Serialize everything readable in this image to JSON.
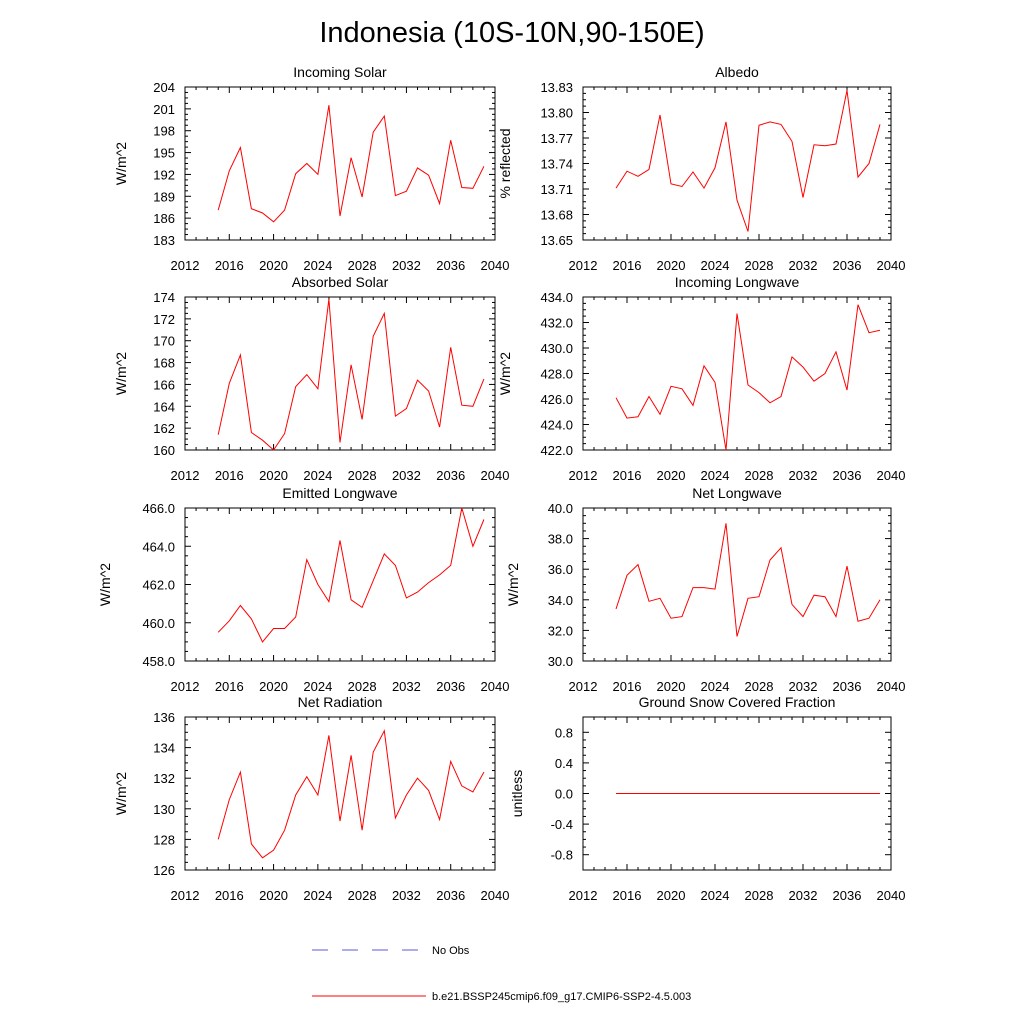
{
  "title": "Indonesia (10S-10N,90-150E)",
  "colors": {
    "series": "#ff0000",
    "obs": "#5a5adc",
    "axis": "#000000"
  },
  "legend": {
    "obs_label": "No Obs",
    "model_label": "b.e21.BSSP245cmip6.f09_g17.CMIP6-SSP2-4.5.003"
  },
  "chart_data": [
    {
      "type": "line",
      "title": "Incoming Solar",
      "ylabel": "W/m^2",
      "xlim": [
        2012,
        2040
      ],
      "xticks": [
        2012,
        2016,
        2020,
        2024,
        2028,
        2032,
        2036,
        2040
      ],
      "ylim": [
        183,
        204
      ],
      "yticks": [
        "183",
        "186",
        "189",
        "192",
        "195",
        "198",
        "201",
        "204"
      ],
      "x": [
        2015,
        2016,
        2017,
        2018,
        2019,
        2020,
        2021,
        2022,
        2023,
        2024,
        2025,
        2026,
        2027,
        2028,
        2029,
        2030,
        2031,
        2032,
        2033,
        2034,
        2035,
        2036,
        2037,
        2038,
        2039
      ],
      "values": [
        187.1,
        192.5,
        195.7,
        187.3,
        186.7,
        185.5,
        187.1,
        192.1,
        193.5,
        192.0,
        201.5,
        186.3,
        194.3,
        188.9,
        197.8,
        200.0,
        189.1,
        189.7,
        192.9,
        191.9,
        188.0,
        196.7,
        190.2,
        190.1,
        193.1
      ]
    },
    {
      "type": "line",
      "title": "Albedo",
      "ylabel": "% reflected",
      "xlim": [
        2012,
        2040
      ],
      "xticks": [
        2012,
        2016,
        2020,
        2024,
        2028,
        2032,
        2036,
        2040
      ],
      "ylim": [
        13.65,
        13.83
      ],
      "yticks": [
        "13.65",
        "13.68",
        "13.71",
        "13.74",
        "13.77",
        "13.80",
        "13.83"
      ],
      "x": [
        2015,
        2016,
        2017,
        2018,
        2019,
        2020,
        2021,
        2022,
        2023,
        2024,
        2025,
        2026,
        2027,
        2028,
        2029,
        2030,
        2031,
        2032,
        2033,
        2034,
        2035,
        2036,
        2037,
        2038,
        2039
      ],
      "values": [
        13.711,
        13.731,
        13.725,
        13.733,
        13.797,
        13.716,
        13.713,
        13.73,
        13.711,
        13.735,
        13.789,
        13.697,
        13.66,
        13.785,
        13.789,
        13.786,
        13.766,
        13.7,
        13.762,
        13.761,
        13.763,
        13.826,
        13.724,
        13.74,
        13.786
      ]
    },
    {
      "type": "line",
      "title": "Absorbed Solar",
      "ylabel": "W/m^2",
      "xlim": [
        2012,
        2040
      ],
      "xticks": [
        2012,
        2016,
        2020,
        2024,
        2028,
        2032,
        2036,
        2040
      ],
      "ylim": [
        160,
        174
      ],
      "yticks": [
        "160",
        "162",
        "164",
        "166",
        "168",
        "170",
        "172",
        "174"
      ],
      "x": [
        2015,
        2016,
        2017,
        2018,
        2019,
        2020,
        2021,
        2022,
        2023,
        2024,
        2025,
        2026,
        2027,
        2028,
        2029,
        2030,
        2031,
        2032,
        2033,
        2034,
        2035,
        2036,
        2037,
        2038,
        2039
      ],
      "values": [
        161.4,
        166.1,
        168.7,
        161.6,
        160.9,
        160.0,
        161.5,
        165.8,
        166.9,
        165.6,
        173.8,
        160.7,
        167.8,
        162.8,
        170.4,
        172.5,
        163.1,
        163.8,
        166.4,
        165.4,
        162.1,
        169.4,
        164.1,
        164.0,
        166.5
      ]
    },
    {
      "type": "line",
      "title": "Incoming Longwave",
      "ylabel": "W/m^2",
      "xlim": [
        2012,
        2040
      ],
      "xticks": [
        2012,
        2016,
        2020,
        2024,
        2028,
        2032,
        2036,
        2040
      ],
      "ylim": [
        422.0,
        434.0
      ],
      "yticks": [
        "422.0",
        "424.0",
        "426.0",
        "428.0",
        "430.0",
        "432.0",
        "434.0"
      ],
      "x": [
        2015,
        2016,
        2017,
        2018,
        2019,
        2020,
        2021,
        2022,
        2023,
        2024,
        2025,
        2026,
        2027,
        2028,
        2029,
        2030,
        2031,
        2032,
        2033,
        2034,
        2035,
        2036,
        2037,
        2038,
        2039
      ],
      "values": [
        426.1,
        424.5,
        424.6,
        426.2,
        424.8,
        427.0,
        426.8,
        425.5,
        428.6,
        427.3,
        422.0,
        432.7,
        427.1,
        426.5,
        425.7,
        426.2,
        429.3,
        428.5,
        427.4,
        428.0,
        429.7,
        426.7,
        433.4,
        431.2,
        431.4
      ]
    },
    {
      "type": "line",
      "title": "Emitted Longwave",
      "ylabel": "W/m^2",
      "xlim": [
        2012,
        2040
      ],
      "xticks": [
        2012,
        2016,
        2020,
        2024,
        2028,
        2032,
        2036,
        2040
      ],
      "ylim": [
        458.0,
        466.0
      ],
      "yticks": [
        "458.0",
        "460.0",
        "462.0",
        "464.0",
        "466.0"
      ],
      "x": [
        2015,
        2016,
        2017,
        2018,
        2019,
        2020,
        2021,
        2022,
        2023,
        2024,
        2025,
        2026,
        2027,
        2028,
        2029,
        2030,
        2031,
        2032,
        2033,
        2034,
        2035,
        2036,
        2037,
        2038,
        2039
      ],
      "values": [
        459.5,
        460.1,
        460.9,
        460.2,
        459.0,
        459.7,
        459.7,
        460.3,
        463.3,
        462.0,
        461.1,
        464.3,
        461.2,
        460.8,
        462.2,
        463.6,
        463.0,
        461.3,
        461.6,
        462.1,
        462.5,
        463.0,
        466.0,
        464.0,
        465.4
      ]
    },
    {
      "type": "line",
      "title": "Net Longwave",
      "ylabel": "W/m^2",
      "xlim": [
        2012,
        2040
      ],
      "xticks": [
        2012,
        2016,
        2020,
        2024,
        2028,
        2032,
        2036,
        2040
      ],
      "ylim": [
        30.0,
        40.0
      ],
      "yticks": [
        "30.0",
        "32.0",
        "34.0",
        "36.0",
        "38.0",
        "40.0"
      ],
      "x": [
        2015,
        2016,
        2017,
        2018,
        2019,
        2020,
        2021,
        2022,
        2023,
        2024,
        2025,
        2026,
        2027,
        2028,
        2029,
        2030,
        2031,
        2032,
        2033,
        2034,
        2035,
        2036,
        2037,
        2038,
        2039
      ],
      "values": [
        33.4,
        35.6,
        36.3,
        33.9,
        34.1,
        32.8,
        32.9,
        34.8,
        34.8,
        34.7,
        39.0,
        31.6,
        34.1,
        34.2,
        36.6,
        37.4,
        33.7,
        32.9,
        34.3,
        34.2,
        32.9,
        36.2,
        32.6,
        32.8,
        34.0
      ]
    },
    {
      "type": "line",
      "title": "Net Radiation",
      "ylabel": "W/m^2",
      "xlim": [
        2012,
        2040
      ],
      "xticks": [
        2012,
        2016,
        2020,
        2024,
        2028,
        2032,
        2036,
        2040
      ],
      "ylim": [
        126,
        136
      ],
      "yticks": [
        "126",
        "128",
        "130",
        "132",
        "134",
        "136"
      ],
      "x": [
        2015,
        2016,
        2017,
        2018,
        2019,
        2020,
        2021,
        2022,
        2023,
        2024,
        2025,
        2026,
        2027,
        2028,
        2029,
        2030,
        2031,
        2032,
        2033,
        2034,
        2035,
        2036,
        2037,
        2038,
        2039
      ],
      "values": [
        128.0,
        130.6,
        132.4,
        127.7,
        126.8,
        127.3,
        128.6,
        130.9,
        132.1,
        130.9,
        134.8,
        129.2,
        133.5,
        128.6,
        133.7,
        135.1,
        129.4,
        130.9,
        132.0,
        131.2,
        129.3,
        133.1,
        131.5,
        131.1,
        132.4
      ]
    },
    {
      "type": "line",
      "title": "Ground Snow Covered Fraction",
      "ylabel": "unitless",
      "xlim": [
        2012,
        2040
      ],
      "xticks": [
        2012,
        2016,
        2020,
        2024,
        2028,
        2032,
        2036,
        2040
      ],
      "ylim": [
        -1.0,
        1.0
      ],
      "yticks": [
        "-0.8",
        "-0.4",
        "0.0",
        "0.4",
        "0.8"
      ],
      "x": [
        2015,
        2016,
        2017,
        2018,
        2019,
        2020,
        2021,
        2022,
        2023,
        2024,
        2025,
        2026,
        2027,
        2028,
        2029,
        2030,
        2031,
        2032,
        2033,
        2034,
        2035,
        2036,
        2037,
        2038,
        2039
      ],
      "values": [
        0,
        0,
        0,
        0,
        0,
        0,
        0,
        0,
        0,
        0,
        0,
        0,
        0,
        0,
        0,
        0,
        0,
        0,
        0,
        0,
        0,
        0,
        0,
        0,
        0
      ]
    }
  ]
}
